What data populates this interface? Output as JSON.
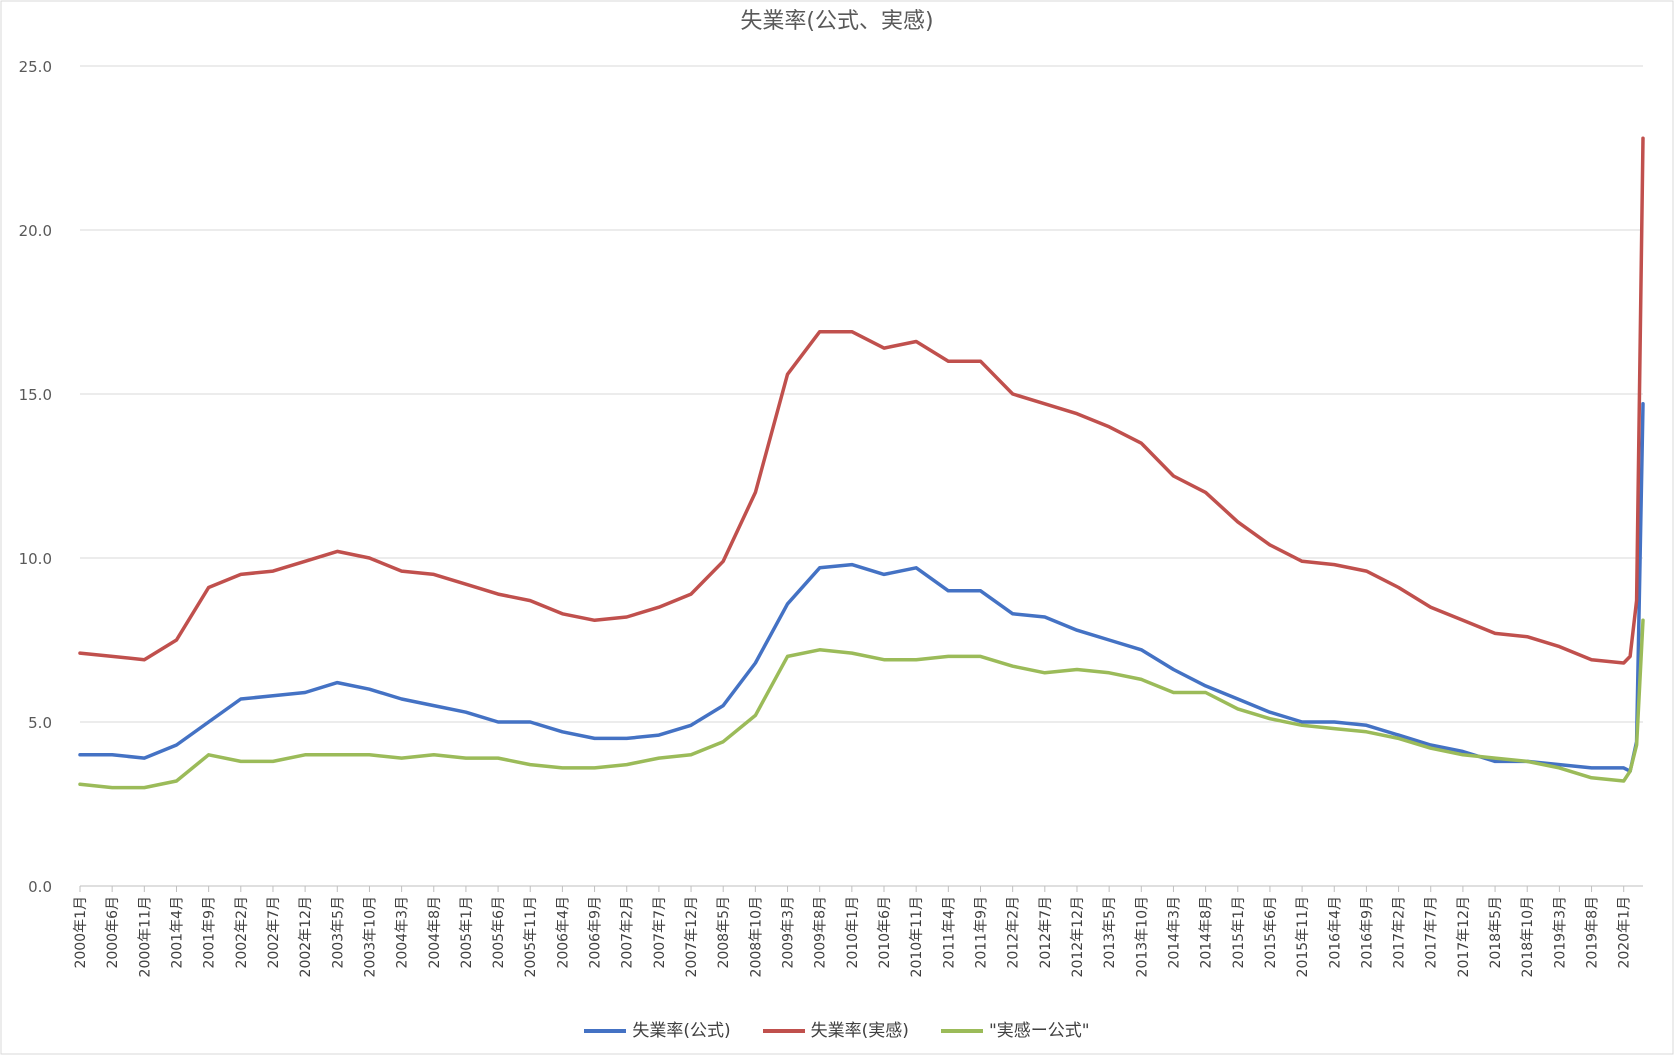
{
  "chart_data": {
    "type": "line",
    "title": "失業率(公式、実感)",
    "xlabel": "",
    "ylabel": "",
    "ylim": [
      0,
      25
    ],
    "yticks": [
      "0.0",
      "5.0",
      "10.0",
      "15.0",
      "20.0",
      "25.0"
    ],
    "x_start": "2000-01",
    "x_end": "2020-04",
    "x_tick_labels": [
      "2000年1月",
      "2000年6月",
      "2000年11月",
      "2001年4月",
      "2001年9月",
      "2002年2月",
      "2002年7月",
      "2002年12月",
      "2003年5月",
      "2003年10月",
      "2004年3月",
      "2004年8月",
      "2005年1月",
      "2005年6月",
      "2005年11月",
      "2006年4月",
      "2006年9月",
      "2007年2月",
      "2007年7月",
      "2007年12月",
      "2008年5月",
      "2008年10月",
      "2009年3月",
      "2009年8月",
      "2010年1月",
      "2010年6月",
      "2010年11月",
      "2011年4月",
      "2011年9月",
      "2012年2月",
      "2012年7月",
      "2012年12月",
      "2013年5月",
      "2013年10月",
      "2014年3月",
      "2014年8月",
      "2015年1月",
      "2015年6月",
      "2015年11月",
      "2016年4月",
      "2016年9月",
      "2017年2月",
      "2017年7月",
      "2017年12月",
      "2018年5月",
      "2018年10月",
      "2019年3月",
      "2019年8月",
      "2020年1月"
    ],
    "grid": true,
    "legend_position": "bottom",
    "series": [
      {
        "name": "失業率(公式)",
        "color": "#4472c4",
        "points": [
          [
            "2000-01",
            4.0
          ],
          [
            "2000-06",
            4.0
          ],
          [
            "2000-11",
            3.9
          ],
          [
            "2001-04",
            4.3
          ],
          [
            "2001-09",
            5.0
          ],
          [
            "2002-02",
            5.7
          ],
          [
            "2002-07",
            5.8
          ],
          [
            "2002-12",
            5.9
          ],
          [
            "2003-05",
            6.2
          ],
          [
            "2003-10",
            6.0
          ],
          [
            "2004-03",
            5.7
          ],
          [
            "2004-08",
            5.5
          ],
          [
            "2005-01",
            5.3
          ],
          [
            "2005-06",
            5.0
          ],
          [
            "2005-11",
            5.0
          ],
          [
            "2006-04",
            4.7
          ],
          [
            "2006-09",
            4.5
          ],
          [
            "2007-02",
            4.5
          ],
          [
            "2007-07",
            4.6
          ],
          [
            "2007-12",
            4.9
          ],
          [
            "2008-05",
            5.5
          ],
          [
            "2008-10",
            6.8
          ],
          [
            "2009-03",
            8.6
          ],
          [
            "2009-08",
            9.7
          ],
          [
            "2010-01",
            9.8
          ],
          [
            "2010-06",
            9.5
          ],
          [
            "2010-11",
            9.7
          ],
          [
            "2011-04",
            9.0
          ],
          [
            "2011-09",
            9.0
          ],
          [
            "2012-02",
            8.3
          ],
          [
            "2012-07",
            8.2
          ],
          [
            "2012-12",
            7.8
          ],
          [
            "2013-05",
            7.5
          ],
          [
            "2013-10",
            7.2
          ],
          [
            "2014-03",
            6.6
          ],
          [
            "2014-08",
            6.1
          ],
          [
            "2015-01",
            5.7
          ],
          [
            "2015-06",
            5.3
          ],
          [
            "2015-11",
            5.0
          ],
          [
            "2016-04",
            5.0
          ],
          [
            "2016-09",
            4.9
          ],
          [
            "2017-02",
            4.6
          ],
          [
            "2017-07",
            4.3
          ],
          [
            "2017-12",
            4.1
          ],
          [
            "2018-05",
            3.8
          ],
          [
            "2018-10",
            3.8
          ],
          [
            "2019-03",
            3.7
          ],
          [
            "2019-08",
            3.6
          ],
          [
            "2020-01",
            3.6
          ],
          [
            "2020-02",
            3.5
          ],
          [
            "2020-03",
            4.4
          ],
          [
            "2020-04",
            14.7
          ]
        ]
      },
      {
        "name": "失業率(実感)",
        "color": "#c0504d",
        "points": [
          [
            "2000-01",
            7.1
          ],
          [
            "2000-06",
            7.0
          ],
          [
            "2000-11",
            6.9
          ],
          [
            "2001-04",
            7.5
          ],
          [
            "2001-09",
            9.1
          ],
          [
            "2002-02",
            9.5
          ],
          [
            "2002-07",
            9.6
          ],
          [
            "2002-12",
            9.9
          ],
          [
            "2003-05",
            10.2
          ],
          [
            "2003-10",
            10.0
          ],
          [
            "2004-03",
            9.6
          ],
          [
            "2004-08",
            9.5
          ],
          [
            "2005-01",
            9.2
          ],
          [
            "2005-06",
            8.9
          ],
          [
            "2005-11",
            8.7
          ],
          [
            "2006-04",
            8.3
          ],
          [
            "2006-09",
            8.1
          ],
          [
            "2007-02",
            8.2
          ],
          [
            "2007-07",
            8.5
          ],
          [
            "2007-12",
            8.9
          ],
          [
            "2008-05",
            9.9
          ],
          [
            "2008-10",
            12.0
          ],
          [
            "2009-03",
            15.6
          ],
          [
            "2009-08",
            16.9
          ],
          [
            "2010-01",
            16.9
          ],
          [
            "2010-06",
            16.4
          ],
          [
            "2010-11",
            16.6
          ],
          [
            "2011-04",
            16.0
          ],
          [
            "2011-09",
            16.0
          ],
          [
            "2012-02",
            15.0
          ],
          [
            "2012-07",
            14.7
          ],
          [
            "2012-12",
            14.4
          ],
          [
            "2013-05",
            14.0
          ],
          [
            "2013-10",
            13.5
          ],
          [
            "2014-03",
            12.5
          ],
          [
            "2014-08",
            12.0
          ],
          [
            "2015-01",
            11.1
          ],
          [
            "2015-06",
            10.4
          ],
          [
            "2015-11",
            9.9
          ],
          [
            "2016-04",
            9.8
          ],
          [
            "2016-09",
            9.6
          ],
          [
            "2017-02",
            9.1
          ],
          [
            "2017-07",
            8.5
          ],
          [
            "2017-12",
            8.1
          ],
          [
            "2018-05",
            7.7
          ],
          [
            "2018-10",
            7.6
          ],
          [
            "2019-03",
            7.3
          ],
          [
            "2019-08",
            6.9
          ],
          [
            "2020-01",
            6.8
          ],
          [
            "2020-02",
            7.0
          ],
          [
            "2020-03",
            8.7
          ],
          [
            "2020-04",
            22.8
          ]
        ]
      },
      {
        "name": "\"実感ー公式\"",
        "color": "#9bbb59",
        "points": [
          [
            "2000-01",
            3.1
          ],
          [
            "2000-06",
            3.0
          ],
          [
            "2000-11",
            3.0
          ],
          [
            "2001-04",
            3.2
          ],
          [
            "2001-09",
            4.0
          ],
          [
            "2002-02",
            3.8
          ],
          [
            "2002-07",
            3.8
          ],
          [
            "2002-12",
            4.0
          ],
          [
            "2003-05",
            4.0
          ],
          [
            "2003-10",
            4.0
          ],
          [
            "2004-03",
            3.9
          ],
          [
            "2004-08",
            4.0
          ],
          [
            "2005-01",
            3.9
          ],
          [
            "2005-06",
            3.9
          ],
          [
            "2005-11",
            3.7
          ],
          [
            "2006-04",
            3.6
          ],
          [
            "2006-09",
            3.6
          ],
          [
            "2007-02",
            3.7
          ],
          [
            "2007-07",
            3.9
          ],
          [
            "2007-12",
            4.0
          ],
          [
            "2008-05",
            4.4
          ],
          [
            "2008-10",
            5.2
          ],
          [
            "2009-03",
            7.0
          ],
          [
            "2009-08",
            7.2
          ],
          [
            "2010-01",
            7.1
          ],
          [
            "2010-06",
            6.9
          ],
          [
            "2010-11",
            6.9
          ],
          [
            "2011-04",
            7.0
          ],
          [
            "2011-09",
            7.0
          ],
          [
            "2012-02",
            6.7
          ],
          [
            "2012-07",
            6.5
          ],
          [
            "2012-12",
            6.6
          ],
          [
            "2013-05",
            6.5
          ],
          [
            "2013-10",
            6.3
          ],
          [
            "2014-03",
            5.9
          ],
          [
            "2014-08",
            5.9
          ],
          [
            "2015-01",
            5.4
          ],
          [
            "2015-06",
            5.1
          ],
          [
            "2015-11",
            4.9
          ],
          [
            "2016-04",
            4.8
          ],
          [
            "2016-09",
            4.7
          ],
          [
            "2017-02",
            4.5
          ],
          [
            "2017-07",
            4.2
          ],
          [
            "2017-12",
            4.0
          ],
          [
            "2018-05",
            3.9
          ],
          [
            "2018-10",
            3.8
          ],
          [
            "2019-03",
            3.6
          ],
          [
            "2019-08",
            3.3
          ],
          [
            "2020-01",
            3.2
          ],
          [
            "2020-02",
            3.5
          ],
          [
            "2020-03",
            4.3
          ],
          [
            "2020-04",
            8.1
          ]
        ]
      }
    ]
  }
}
